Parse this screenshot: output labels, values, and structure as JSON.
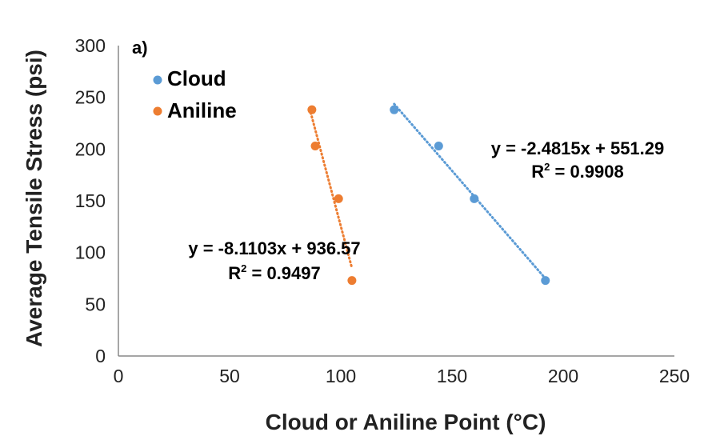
{
  "chart_data": {
    "type": "scatter",
    "panel_label": "a)",
    "xlabel": "Cloud or Aniline Point (°C)",
    "ylabel": "Average Tensile Stress (psi)",
    "xlim": [
      0,
      250
    ],
    "ylim": [
      0,
      300
    ],
    "xticks": [
      0,
      50,
      100,
      150,
      200,
      250
    ],
    "yticks": [
      0,
      50,
      100,
      150,
      200,
      250,
      300
    ],
    "grid": false,
    "legend_position": "top-left",
    "series": [
      {
        "name": "Cloud",
        "color": "#5b9bd5",
        "points": [
          [
            124,
            238
          ],
          [
            144,
            203
          ],
          [
            160,
            152
          ],
          [
            192,
            73
          ]
        ],
        "trendline": {
          "slope": -2.4815,
          "intercept": 551.29,
          "x_range": [
            124,
            192
          ],
          "style": "dotted"
        },
        "equation": "y = -2.4815x + 551.29",
        "r2_label": "R",
        "r2_value": " = 0.9908"
      },
      {
        "name": "Aniline",
        "color": "#ed7d31",
        "points": [
          [
            87,
            238
          ],
          [
            88.5,
            203
          ],
          [
            99,
            152
          ],
          [
            105,
            73
          ]
        ],
        "trendline": {
          "slope": -8.1103,
          "intercept": 936.57,
          "x_range": [
            86.5,
            105
          ],
          "style": "dotted"
        },
        "equation": "y = -8.1103x + 936.57",
        "r2_label": "R",
        "r2_value": " = 0.9497"
      }
    ]
  }
}
